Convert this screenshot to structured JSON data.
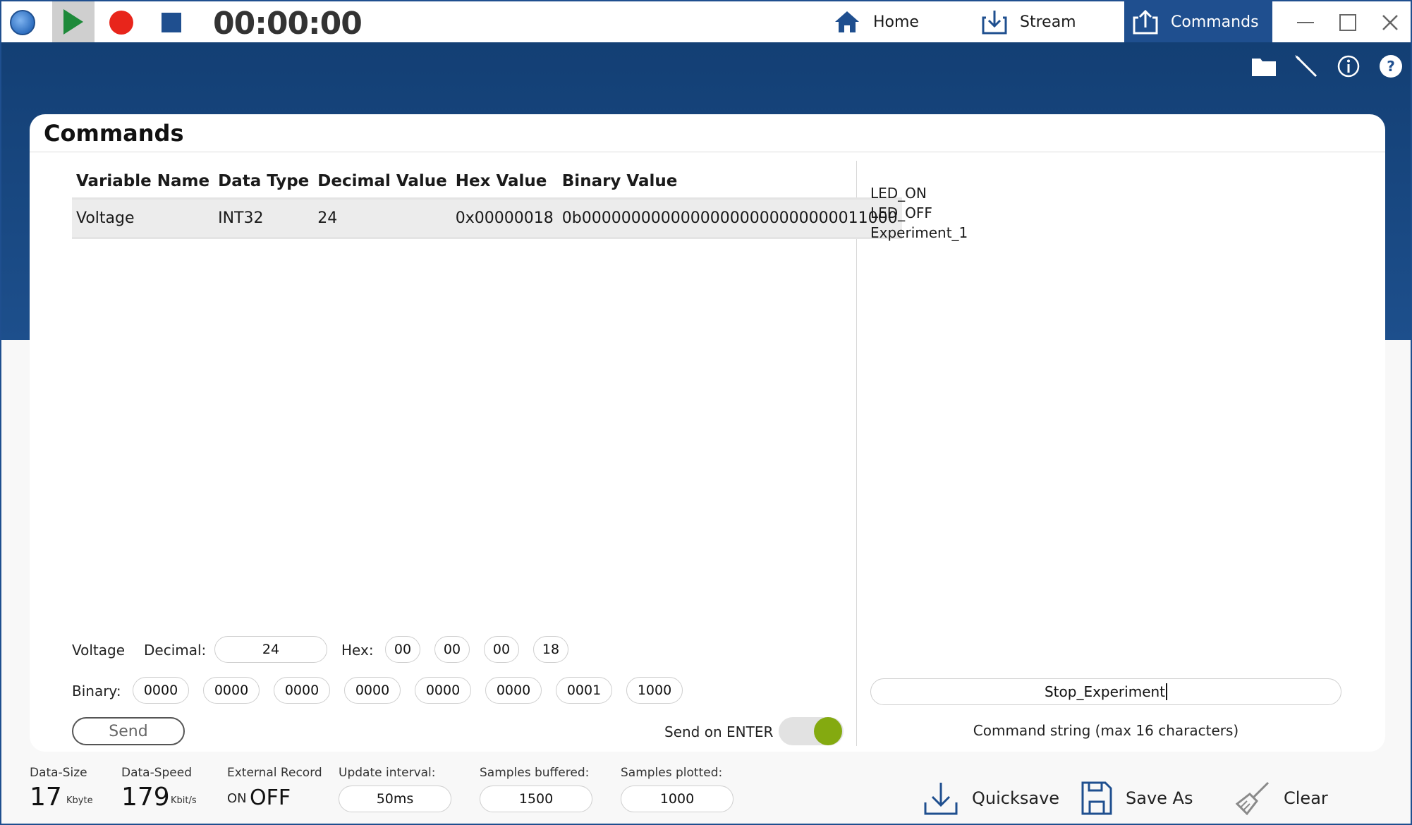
{
  "titlebar": {
    "timer": "00:00:00",
    "nav": [
      {
        "label": "Home",
        "icon": "home-icon"
      },
      {
        "label": "Stream",
        "icon": "download-tray-icon"
      },
      {
        "label": "Commands",
        "icon": "upload-tray-icon"
      }
    ],
    "active_tab": "Commands"
  },
  "colors": {
    "accent": "#1f4f8f",
    "play": "#1e8a3a",
    "record": "#e8251b",
    "toggle_on": "#84aa10"
  },
  "card": {
    "title": "Commands"
  },
  "table": {
    "headers": [
      "Variable Name",
      "Data Type",
      "Decimal Value",
      "Hex Value",
      "Binary Value"
    ],
    "rows": [
      [
        "Voltage",
        "INT32",
        "24",
        "0x00000018",
        "0b00000000000000000000000000011000"
      ]
    ]
  },
  "editor": {
    "variable": "Voltage",
    "decimal_label": "Decimal:",
    "decimal_value": "24",
    "hex_label": "Hex:",
    "hex_bytes": [
      "00",
      "00",
      "00",
      "18"
    ],
    "binary_label": "Binary:",
    "binary_nibbles": [
      "0000",
      "0000",
      "0000",
      "0000",
      "0000",
      "0000",
      "0001",
      "1000"
    ],
    "send_label": "Send",
    "send_on_enter_label": "Send on ENTER",
    "send_on_enter": true
  },
  "commands": {
    "list": [
      "LED_ON",
      "LED_OFF",
      "Experiment_1"
    ],
    "input_value": "Stop_Experiment",
    "hint": "Command string (max 16 characters)"
  },
  "status": {
    "data_size_label": "Data-Size",
    "data_size_value": "17",
    "data_size_unit": "Kbyte",
    "data_speed_label": "Data-Speed",
    "data_speed_value": "179",
    "data_speed_unit": "Kbit/s",
    "external_record_label": "External Record",
    "external_on": "ON",
    "external_off": "OFF",
    "update_interval_label": "Update interval:",
    "update_interval_value": "50ms",
    "samples_buffered_label": "Samples buffered:",
    "samples_buffered_value": "1500",
    "samples_plotted_label": "Samples plotted:",
    "samples_plotted_value": "1000",
    "quicksave_label": "Quicksave",
    "save_as_label": "Save As",
    "clear_label": "Clear"
  }
}
